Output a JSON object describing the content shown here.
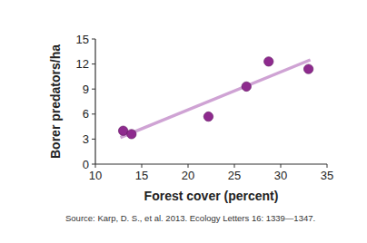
{
  "chart_data": {
    "type": "scatter",
    "x_label": "Forest cover (percent)",
    "y_label": "Borer predators/ha",
    "source": "Source: Karp, D. S., et al. 2013. Ecology Letters 16: 1339—1347.",
    "series": [
      {
        "type": "scatter",
        "marker": "circle",
        "color": "#8e2a8e",
        "x": [
          13.0,
          13.9,
          22.2,
          26.3,
          28.7,
          33.0
        ],
        "values": [
          4.0,
          3.6,
          5.7,
          9.3,
          12.3,
          11.4
        ]
      },
      {
        "type": "line",
        "line_style": "solid",
        "color": "#cfa3d4",
        "x": [
          12.7,
          33.2
        ],
        "values": [
          3.2,
          12.5
        ]
      }
    ],
    "xlim": [
      10,
      35
    ],
    "xticks": [
      10,
      15,
      20,
      25,
      30,
      35
    ],
    "ylim": [
      0,
      15
    ],
    "yticks": [
      0,
      3,
      6,
      9,
      12,
      15
    ],
    "grid": false
  }
}
